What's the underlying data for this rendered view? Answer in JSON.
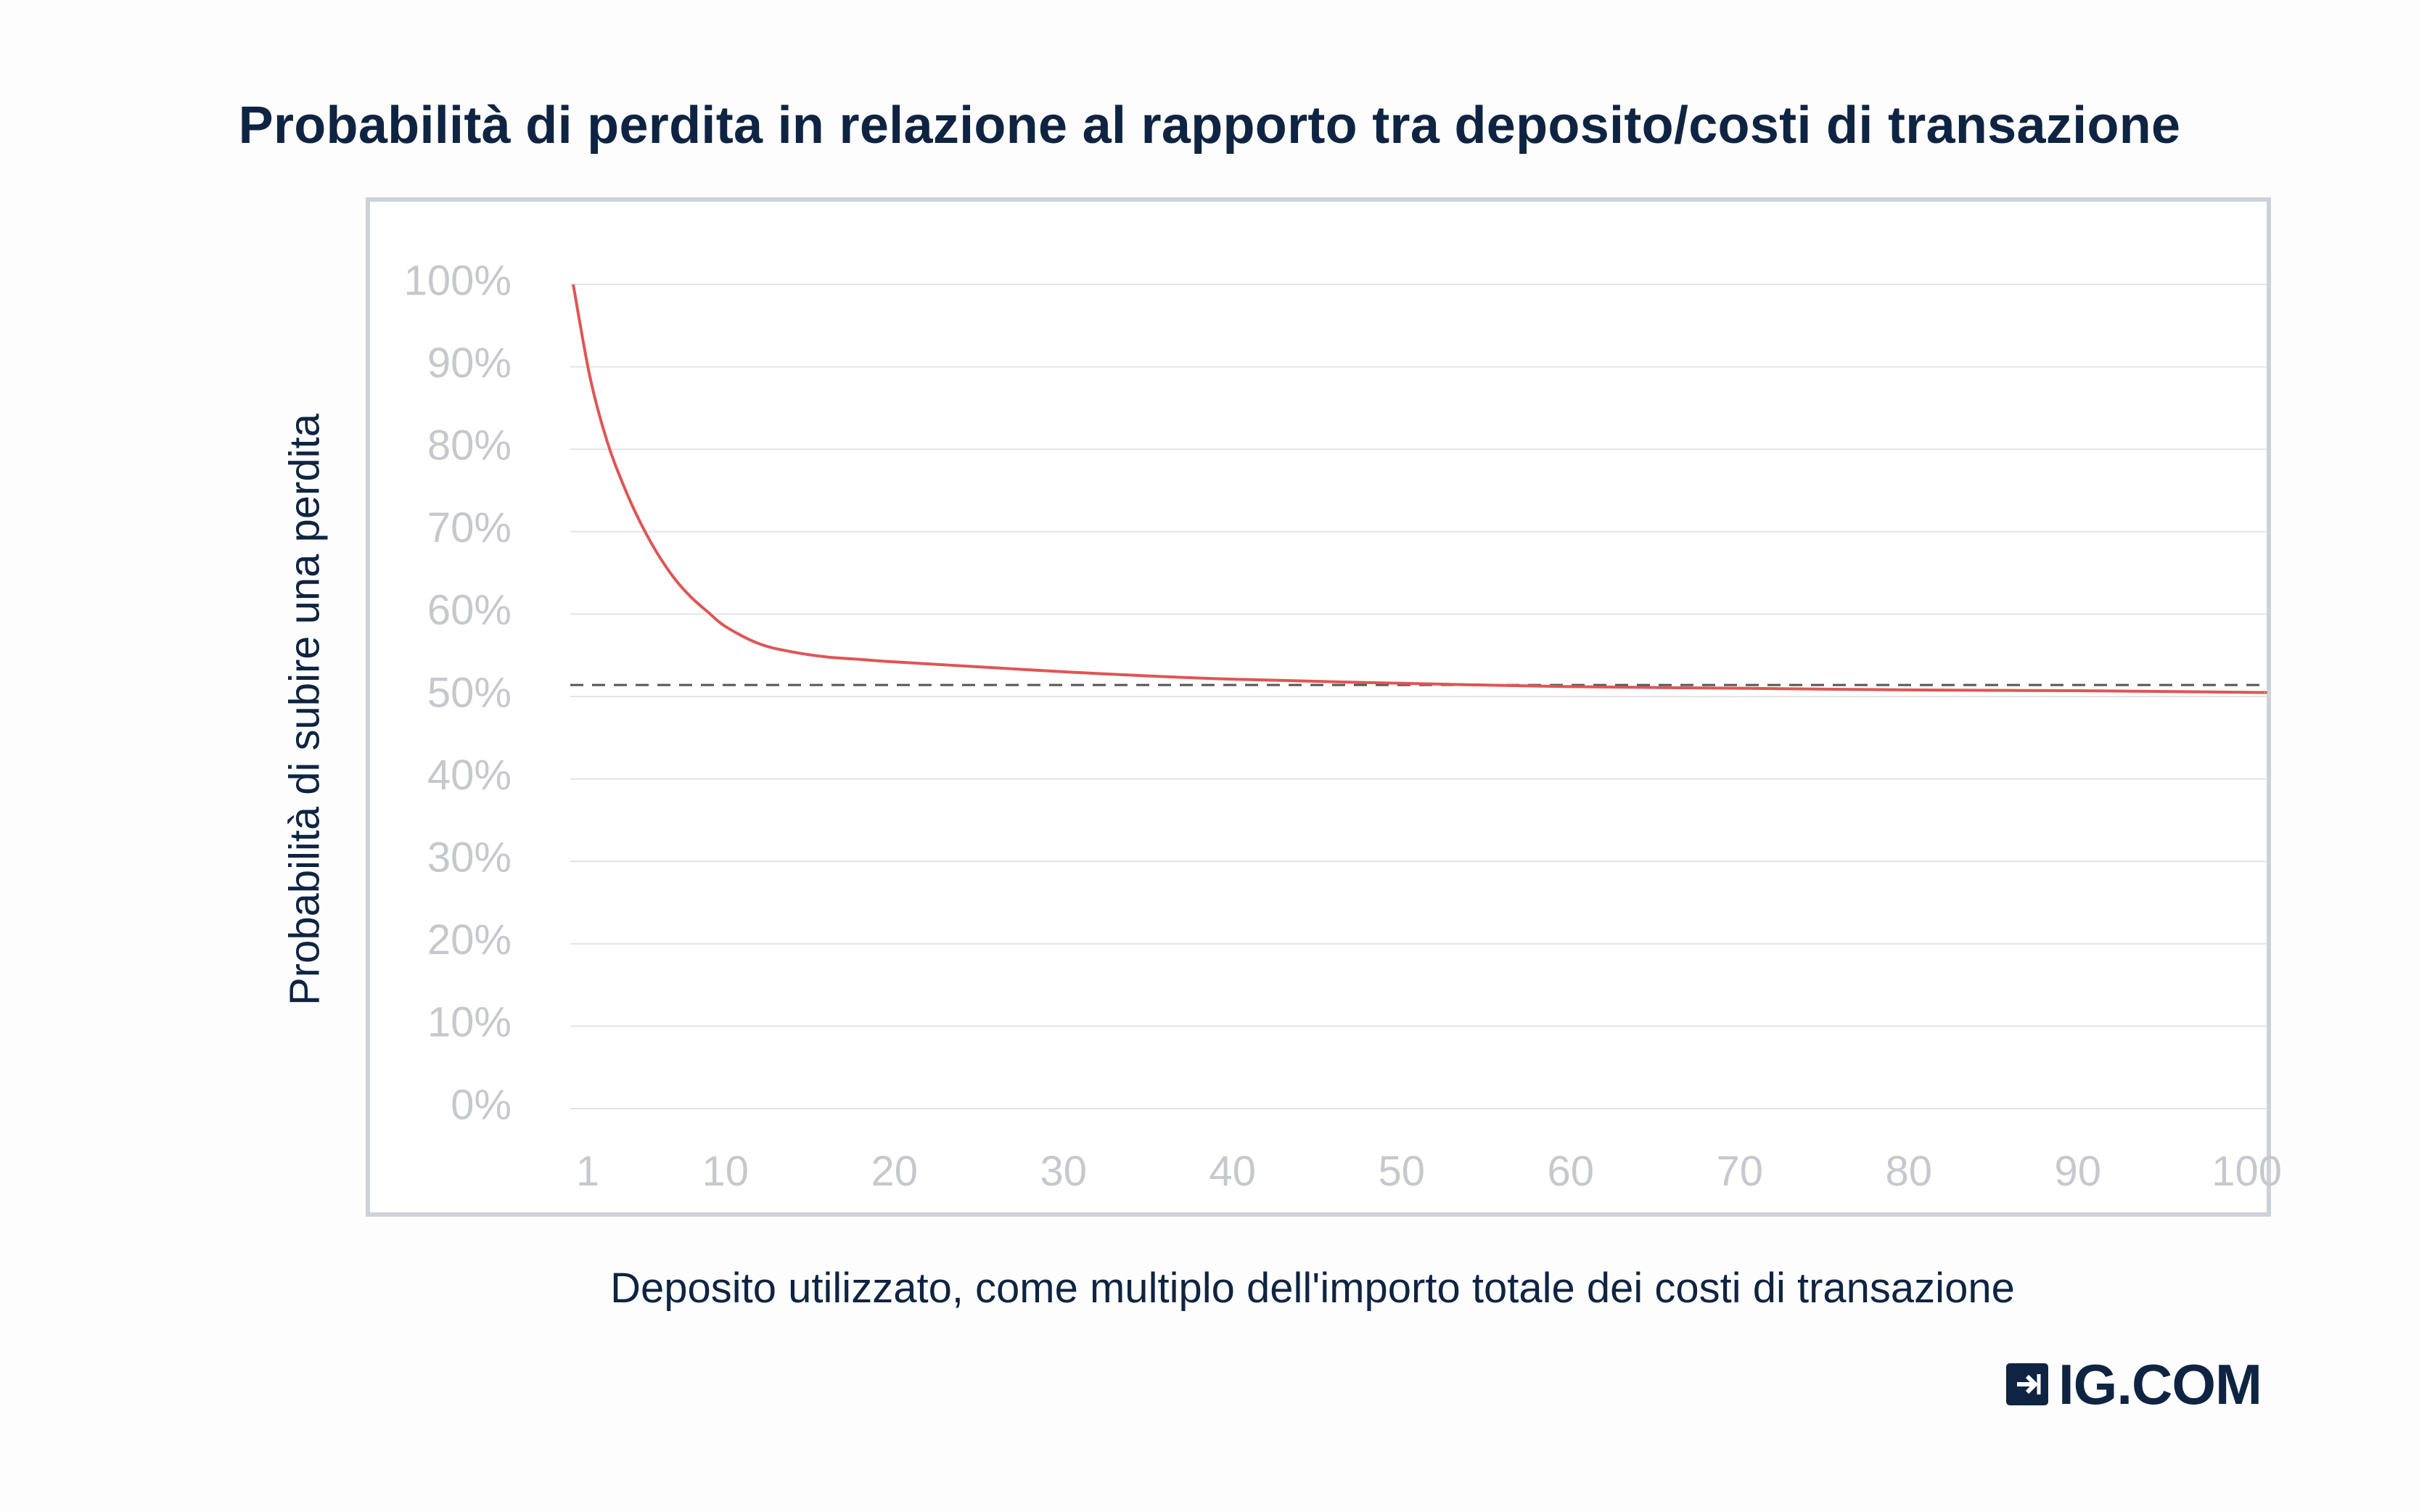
{
  "brand": {
    "name": "IG.COM",
    "color": "#0f2442"
  },
  "colors": {
    "series": "#e05555",
    "baseline": "#555555",
    "grid": "#e2e4e8",
    "frame": "#cdd1d8",
    "tick": "#c6c8cc"
  },
  "chart_data": {
    "type": "line",
    "title": "Probabilità di perdita in relazione al rapporto tra deposito/costi di transazione",
    "xlabel": "Deposito utilizzato, come multiplo dell'importo totale dei costi di transazione",
    "ylabel": "Probabilità di subire una perdita",
    "xlim": [
      1,
      101
    ],
    "ylim": [
      0,
      100
    ],
    "x_ticks": [
      1,
      10,
      20,
      30,
      40,
      50,
      60,
      70,
      80,
      90,
      100
    ],
    "x_tick_labels": [
      "1",
      "10",
      "20",
      "30",
      "40",
      "50",
      "60",
      "70",
      "80",
      "90",
      "100"
    ],
    "y_ticks": [
      0,
      10,
      20,
      30,
      40,
      50,
      60,
      70,
      80,
      90,
      100
    ],
    "y_tick_labels": [
      "0%",
      "10%",
      "20%",
      "30%",
      "40%",
      "50%",
      "60%",
      "70%",
      "80%",
      "90%",
      "100%"
    ],
    "grid": true,
    "series": [
      {
        "color": "#e05555",
        "x": [
          1,
          2,
          3,
          4,
          5,
          6,
          7,
          8,
          9,
          10,
          12,
          14,
          16,
          18,
          20,
          25,
          30,
          35,
          40,
          50,
          60,
          70,
          80,
          90,
          100,
          101
        ],
        "values": [
          100,
          88.7,
          81.0,
          75.5,
          71.0,
          67.3,
          64.3,
          62.0,
          60.2,
          58.5,
          56.4,
          55.4,
          54.8,
          54.5,
          54.2,
          53.6,
          53.0,
          52.5,
          52.1,
          51.6,
          51.2,
          51.0,
          50.8,
          50.7,
          50.5,
          50.5
        ]
      }
    ],
    "reference_line": {
      "y": 51.4,
      "style": "dashed",
      "color": "#555555"
    }
  }
}
